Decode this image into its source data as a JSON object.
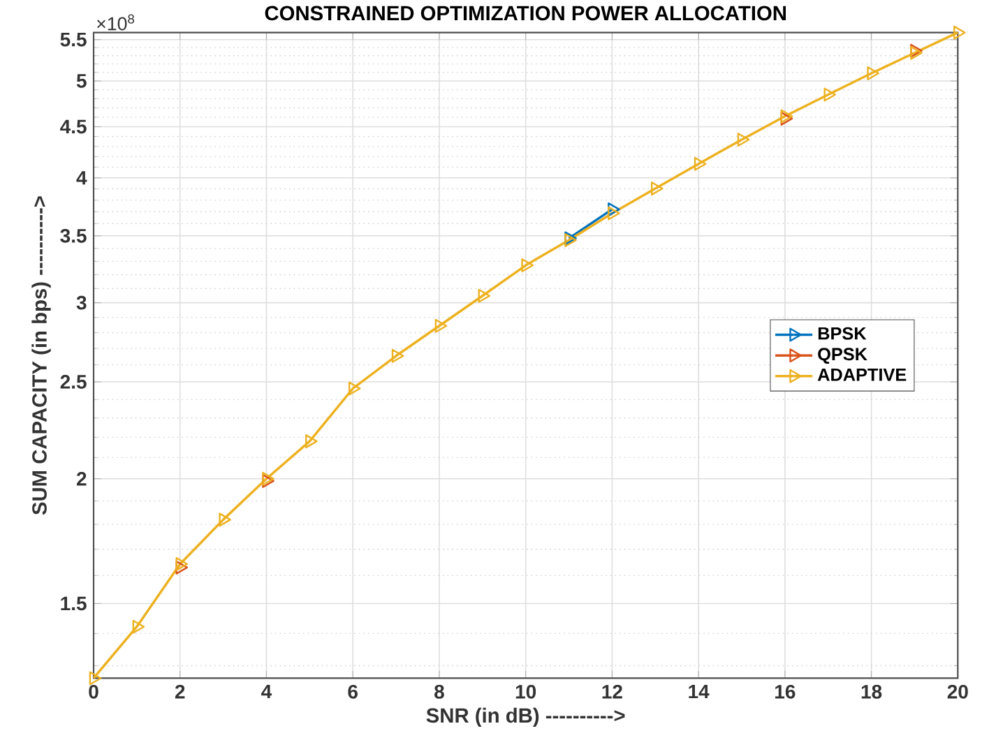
{
  "chart_data": {
    "type": "line",
    "title": "CONSTRAINED OPTIMIZATION POWER ALLOCATION",
    "xlabel": "SNR (in dB) ---------->",
    "ylabel": "SUM CAPACITY (in bps) ---------->",
    "annotations": [
      "×10$^{8}$"
    ],
    "x": [
      0,
      1,
      2,
      3,
      4,
      5,
      6,
      7,
      8,
      9,
      10,
      11,
      12,
      13,
      14,
      15,
      16,
      17,
      18,
      19,
      20
    ],
    "series": [
      {
        "name": "BPSK",
        "color": "#0072bd",
        "values": [
          null,
          null,
          null,
          null,
          null,
          null,
          null,
          null,
          null,
          null,
          null,
          3.48,
          3.72,
          null,
          null,
          null,
          null,
          null,
          null,
          null,
          null
        ]
      },
      {
        "name": "QPSK",
        "color": "#d95319",
        "values": [
          null,
          null,
          1.63,
          null,
          1.99,
          null,
          null,
          null,
          null,
          null,
          null,
          null,
          null,
          null,
          null,
          null,
          4.585,
          null,
          null,
          5.36,
          null
        ]
      },
      {
        "name": "ADAPTIVE",
        "color": "#edb120",
        "values": [
          1.263,
          1.422,
          1.643,
          1.82,
          2.0,
          2.18,
          2.462,
          2.654,
          2.844,
          3.048,
          3.27,
          3.465,
          3.687,
          3.903,
          4.131,
          4.368,
          4.61,
          4.846,
          5.089,
          5.335,
          5.59
        ]
      }
    ],
    "xlim": [
      0,
      20
    ],
    "xticks": [
      0,
      2,
      4,
      6,
      8,
      10,
      12,
      14,
      16,
      18,
      20
    ],
    "ylim": [
      1.263,
      5.59
    ],
    "yticks": [
      1.5,
      2,
      2.5,
      3,
      3.5,
      4,
      4.5,
      5,
      5.5
    ],
    "log": "y",
    "grid": true,
    "legend": "right",
    "marker": "triangle",
    "line_style": "solid"
  }
}
